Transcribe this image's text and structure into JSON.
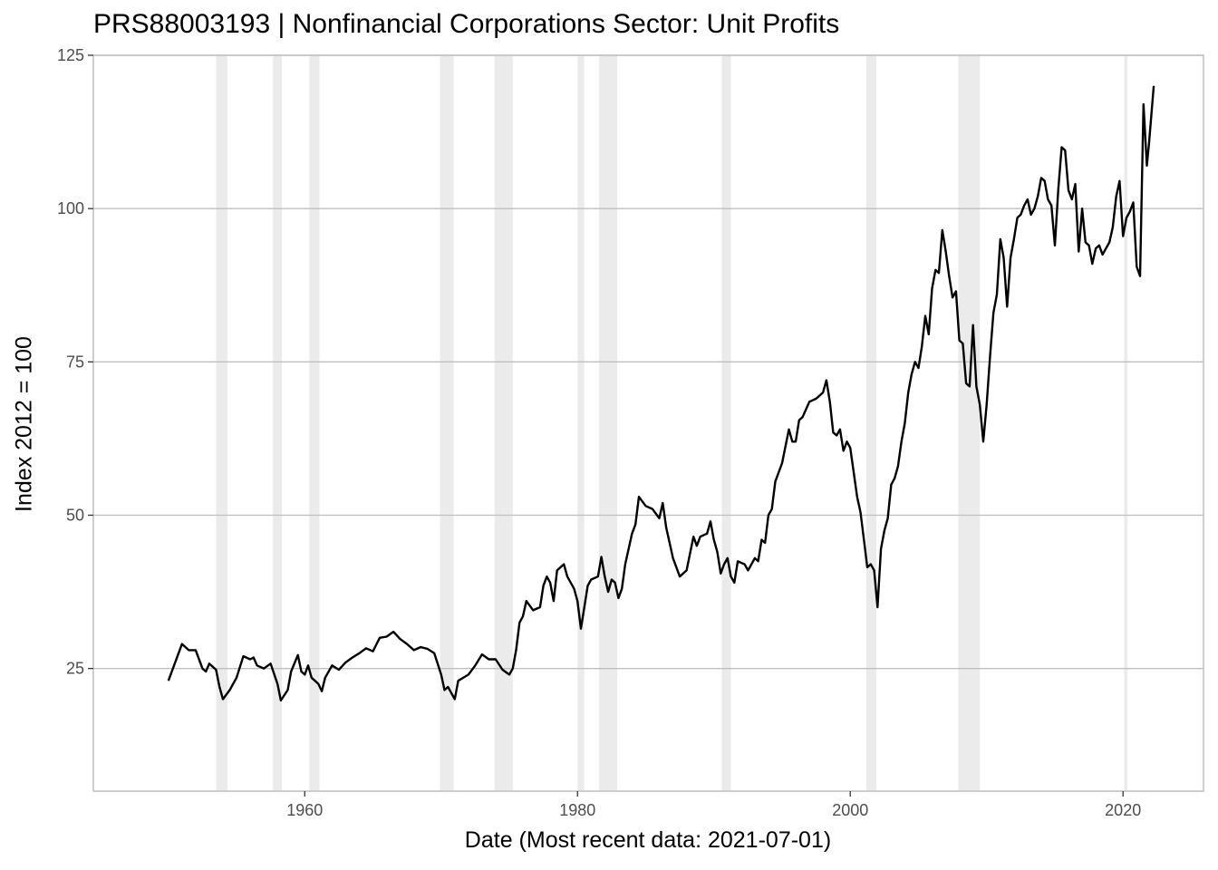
{
  "chart_data": {
    "type": "line",
    "title": "PRS88003193 | Nonfinancial Corporations Sector: Unit Profits",
    "xlabel": "Date (Most recent data: 2021-07-01)",
    "ylabel": "Index 2012 = 100",
    "xlim": [
      1944.5,
      2025.9
    ],
    "ylim": [
      5,
      125
    ],
    "x_ticks": [
      1960,
      1980,
      2000,
      2020
    ],
    "y_ticks": [
      25,
      50,
      75,
      100,
      125
    ],
    "grid": "horizontal major lines",
    "legend": "none",
    "colors": {
      "line": "#000000",
      "recession": "#ebebeb",
      "grid": "#bfbfbf",
      "panel_border": "#bfbfbf"
    },
    "recessions": [
      [
        1953.5,
        1954.33
      ],
      [
        1957.67,
        1958.33
      ],
      [
        1960.33,
        1961.08
      ],
      [
        1969.92,
        1970.92
      ],
      [
        1973.92,
        1975.25
      ],
      [
        1980.0,
        1980.5
      ],
      [
        1981.58,
        1982.92
      ],
      [
        1990.58,
        1991.25
      ],
      [
        2001.17,
        2001.92
      ],
      [
        2007.92,
        2009.5
      ],
      [
        2020.08,
        2020.33
      ]
    ],
    "series": [
      {
        "points": [
          [
            1950.0,
            23.0
          ],
          [
            1950.5,
            26.0
          ],
          [
            1951.0,
            29.0
          ],
          [
            1951.5,
            28.0
          ],
          [
            1952.0,
            28.0
          ],
          [
            1952.5,
            25.0
          ],
          [
            1952.75,
            24.5
          ],
          [
            1953.0,
            25.8
          ],
          [
            1953.5,
            24.8
          ],
          [
            1953.75,
            22.0
          ],
          [
            1954.0,
            20.0
          ],
          [
            1954.5,
            21.5
          ],
          [
            1955.0,
            23.5
          ],
          [
            1955.5,
            27.0
          ],
          [
            1956.0,
            26.5
          ],
          [
            1956.25,
            26.8
          ],
          [
            1956.5,
            25.5
          ],
          [
            1957.0,
            25.0
          ],
          [
            1957.5,
            25.8
          ],
          [
            1958.0,
            22.5
          ],
          [
            1958.25,
            19.8
          ],
          [
            1958.75,
            21.5
          ],
          [
            1959.0,
            24.5
          ],
          [
            1959.5,
            27.2
          ],
          [
            1959.75,
            24.5
          ],
          [
            1960.0,
            24.0
          ],
          [
            1960.25,
            25.5
          ],
          [
            1960.5,
            23.5
          ],
          [
            1961.0,
            22.5
          ],
          [
            1961.25,
            21.3
          ],
          [
            1961.5,
            23.5
          ],
          [
            1962.0,
            25.5
          ],
          [
            1962.5,
            24.8
          ],
          [
            1963.0,
            26.0
          ],
          [
            1963.5,
            26.8
          ],
          [
            1964.0,
            27.5
          ],
          [
            1964.5,
            28.3
          ],
          [
            1965.0,
            27.8
          ],
          [
            1965.5,
            30.0
          ],
          [
            1966.0,
            30.2
          ],
          [
            1966.5,
            31.0
          ],
          [
            1967.0,
            29.8
          ],
          [
            1967.5,
            29.0
          ],
          [
            1968.0,
            28.0
          ],
          [
            1968.5,
            28.5
          ],
          [
            1969.0,
            28.2
          ],
          [
            1969.5,
            27.5
          ],
          [
            1970.0,
            24.0
          ],
          [
            1970.25,
            21.5
          ],
          [
            1970.5,
            22.0
          ],
          [
            1971.0,
            20.0
          ],
          [
            1971.25,
            23.0
          ],
          [
            1972.0,
            24.0
          ],
          [
            1972.5,
            25.5
          ],
          [
            1973.0,
            27.3
          ],
          [
            1973.5,
            26.5
          ],
          [
            1974.0,
            26.5
          ],
          [
            1974.5,
            24.8
          ],
          [
            1975.0,
            24.0
          ],
          [
            1975.25,
            25.0
          ],
          [
            1975.5,
            28.0
          ],
          [
            1975.75,
            32.5
          ],
          [
            1976.0,
            33.5
          ],
          [
            1976.25,
            36.0
          ],
          [
            1976.75,
            34.5
          ],
          [
            1977.25,
            35.0
          ],
          [
            1977.5,
            38.5
          ],
          [
            1977.75,
            40.0
          ],
          [
            1978.0,
            39.0
          ],
          [
            1978.25,
            36.0
          ],
          [
            1978.5,
            41.0
          ],
          [
            1979.0,
            42.0
          ],
          [
            1979.25,
            40.0
          ],
          [
            1979.75,
            38.0
          ],
          [
            1980.0,
            36.0
          ],
          [
            1980.25,
            31.5
          ],
          [
            1980.5,
            35.0
          ],
          [
            1980.75,
            38.5
          ],
          [
            1981.0,
            39.5
          ],
          [
            1981.5,
            40.0
          ],
          [
            1981.75,
            43.2
          ],
          [
            1982.0,
            40.0
          ],
          [
            1982.25,
            37.5
          ],
          [
            1982.5,
            39.5
          ],
          [
            1982.75,
            39.0
          ],
          [
            1983.0,
            36.5
          ],
          [
            1983.25,
            38.0
          ],
          [
            1983.5,
            42.0
          ],
          [
            1984.0,
            47.0
          ],
          [
            1984.25,
            48.5
          ],
          [
            1984.5,
            53.0
          ],
          [
            1985.0,
            51.5
          ],
          [
            1985.5,
            51.0
          ],
          [
            1986.0,
            49.5
          ],
          [
            1986.25,
            52.0
          ],
          [
            1986.5,
            48.0
          ],
          [
            1987.0,
            43.0
          ],
          [
            1987.5,
            40.0
          ],
          [
            1988.0,
            41.0
          ],
          [
            1988.5,
            46.5
          ],
          [
            1988.75,
            45.0
          ],
          [
            1989.0,
            46.5
          ],
          [
            1989.5,
            47.0
          ],
          [
            1989.75,
            49.0
          ],
          [
            1990.0,
            46.0
          ],
          [
            1990.25,
            44.0
          ],
          [
            1990.5,
            40.5
          ],
          [
            1990.75,
            42.0
          ],
          [
            1991.0,
            43.0
          ],
          [
            1991.25,
            40.0
          ],
          [
            1991.5,
            39.0
          ],
          [
            1991.75,
            42.5
          ],
          [
            1992.25,
            42.0
          ],
          [
            1992.5,
            41.0
          ],
          [
            1993.0,
            43.0
          ],
          [
            1993.25,
            42.5
          ],
          [
            1993.5,
            46.0
          ],
          [
            1993.75,
            45.5
          ],
          [
            1994.0,
            50.0
          ],
          [
            1994.25,
            51.0
          ],
          [
            1994.5,
            55.5
          ],
          [
            1995.0,
            58.5
          ],
          [
            1995.5,
            64.0
          ],
          [
            1995.75,
            62.0
          ],
          [
            1996.0,
            62.0
          ],
          [
            1996.25,
            65.5
          ],
          [
            1996.5,
            66.0
          ],
          [
            1997.0,
            68.5
          ],
          [
            1997.5,
            69.0
          ],
          [
            1998.0,
            70.0
          ],
          [
            1998.25,
            72.0
          ],
          [
            1998.5,
            68.5
          ],
          [
            1998.75,
            63.5
          ],
          [
            1999.0,
            63.0
          ],
          [
            1999.25,
            64.0
          ],
          [
            1999.5,
            60.5
          ],
          [
            1999.75,
            62.0
          ],
          [
            2000.0,
            61.0
          ],
          [
            2000.25,
            57.0
          ],
          [
            2000.5,
            53.0
          ],
          [
            2000.75,
            50.5
          ],
          [
            2001.0,
            46.0
          ],
          [
            2001.25,
            41.5
          ],
          [
            2001.5,
            42.0
          ],
          [
            2001.75,
            41.0
          ],
          [
            2002.0,
            35.0
          ],
          [
            2002.25,
            44.5
          ],
          [
            2002.5,
            47.5
          ],
          [
            2002.75,
            49.5
          ],
          [
            2003.0,
            55.0
          ],
          [
            2003.25,
            56.0
          ],
          [
            2003.5,
            58.0
          ],
          [
            2003.75,
            62.0
          ],
          [
            2004.0,
            65.0
          ],
          [
            2004.25,
            70.0
          ],
          [
            2004.5,
            73.0
          ],
          [
            2004.75,
            75.0
          ],
          [
            2005.0,
            74.0
          ],
          [
            2005.25,
            77.5
          ],
          [
            2005.5,
            82.5
          ],
          [
            2005.75,
            79.5
          ],
          [
            2006.0,
            87.0
          ],
          [
            2006.25,
            90.0
          ],
          [
            2006.5,
            89.5
          ],
          [
            2006.75,
            96.5
          ],
          [
            2007.0,
            93.0
          ],
          [
            2007.25,
            89.0
          ],
          [
            2007.5,
            85.5
          ],
          [
            2007.75,
            86.5
          ],
          [
            2008.0,
            78.5
          ],
          [
            2008.25,
            78.0
          ],
          [
            2008.5,
            71.5
          ],
          [
            2008.75,
            71.0
          ],
          [
            2009.0,
            81.0
          ],
          [
            2009.25,
            71.0
          ],
          [
            2009.5,
            68.0
          ],
          [
            2009.75,
            62.0
          ],
          [
            2010.0,
            68.0
          ],
          [
            2010.25,
            76.0
          ],
          [
            2010.5,
            83.0
          ],
          [
            2010.75,
            86.0
          ],
          [
            2011.0,
            95.0
          ],
          [
            2011.25,
            92.0
          ],
          [
            2011.5,
            84.0
          ],
          [
            2011.75,
            92.0
          ],
          [
            2012.0,
            95.0
          ],
          [
            2012.25,
            98.5
          ],
          [
            2012.5,
            99.0
          ],
          [
            2012.75,
            100.5
          ],
          [
            2013.0,
            101.5
          ],
          [
            2013.25,
            99.0
          ],
          [
            2013.5,
            100.0
          ],
          [
            2013.75,
            102.0
          ],
          [
            2014.0,
            105.0
          ],
          [
            2014.25,
            104.5
          ],
          [
            2014.5,
            101.5
          ],
          [
            2014.75,
            100.5
          ],
          [
            2015.0,
            94.0
          ],
          [
            2015.25,
            103.0
          ],
          [
            2015.5,
            110.0
          ],
          [
            2015.75,
            109.5
          ],
          [
            2016.0,
            103.0
          ],
          [
            2016.25,
            101.5
          ],
          [
            2016.5,
            104.0
          ],
          [
            2016.75,
            93.0
          ],
          [
            2017.0,
            100.0
          ],
          [
            2017.25,
            94.5
          ],
          [
            2017.5,
            94.0
          ],
          [
            2017.75,
            91.0
          ],
          [
            2018.0,
            93.5
          ],
          [
            2018.25,
            94.0
          ],
          [
            2018.5,
            92.5
          ],
          [
            2018.75,
            93.5
          ],
          [
            2019.0,
            94.5
          ],
          [
            2019.25,
            97.0
          ],
          [
            2019.5,
            102.0
          ],
          [
            2019.75,
            104.5
          ],
          [
            2020.0,
            95.5
          ],
          [
            2020.25,
            98.5
          ],
          [
            2020.5,
            99.5
          ],
          [
            2020.75,
            101.0
          ],
          [
            2021.0,
            90.5
          ],
          [
            2021.25,
            89.0
          ],
          [
            2021.5,
            117.0
          ],
          [
            2021.75,
            107.0
          ],
          [
            2021.9,
            110.5
          ],
          [
            2022.25,
            120.0
          ]
        ]
      }
    ]
  }
}
